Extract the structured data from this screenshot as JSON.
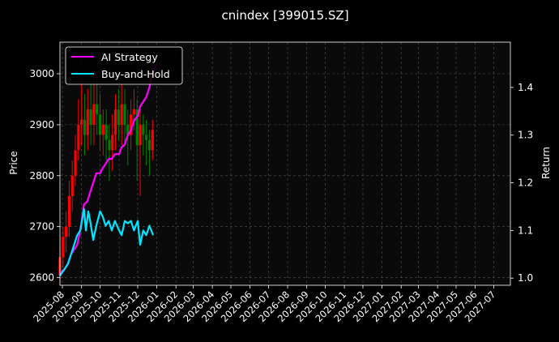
{
  "chart_data": {
    "type": "line",
    "title": "cnindex [399015.SZ]",
    "ylabel_left": "Price",
    "ylabel_right": "Return",
    "x_ticks": [
      "2025-08",
      "2025-09",
      "2025-10",
      "2025-11",
      "2025-12",
      "2026-01",
      "2026-02",
      "2026-03",
      "2026-04",
      "2026-05",
      "2026-06",
      "2026-07",
      "2026-08",
      "2026-09",
      "2026-10",
      "2026-11",
      "2026-12",
      "2027-01",
      "2027-02",
      "2027-03",
      "2027-04",
      "2027-05",
      "2027-06",
      "2027-07"
    ],
    "y_left_ticks": [
      "2600",
      "2700",
      "2800",
      "2900",
      "3000"
    ],
    "y_right_ticks": [
      "1.0",
      "1.1",
      "1.2",
      "1.3",
      "1.4"
    ],
    "y_left_range": [
      2585,
      3062
    ],
    "y_right_range": [
      0.985,
      1.495
    ],
    "x_range": [
      "2025-07-28",
      "2027-07-28"
    ],
    "grid": true,
    "legend_position": "top-left",
    "colors": {
      "up": "#ff0000",
      "down": "#008000",
      "ai": "#ff00ff",
      "bh": "#00e5ff",
      "background": "#0a0a0a"
    },
    "series": [
      {
        "name": "AI Strategy",
        "axis": "right",
        "x": [
          "2025-07-28",
          "2025-08-05",
          "2025-08-10",
          "2025-08-15",
          "2025-08-20",
          "2025-08-25",
          "2025-08-30",
          "2025-09-05",
          "2025-09-10",
          "2025-09-15",
          "2025-09-20",
          "2025-09-25",
          "2025-10-01",
          "2025-10-05",
          "2025-10-10",
          "2025-10-15",
          "2025-10-20",
          "2025-10-25",
          "2025-11-01",
          "2025-11-05",
          "2025-11-10",
          "2025-11-15",
          "2025-11-20",
          "2025-11-25",
          "2025-12-01",
          "2025-12-05",
          "2025-12-10",
          "2025-12-15",
          "2025-12-20",
          "2025-12-25",
          "2026-01-01"
        ],
        "values": [
          1.01,
          1.02,
          1.03,
          1.05,
          1.06,
          1.07,
          1.1,
          1.155,
          1.16,
          1.18,
          1.2,
          1.22,
          1.22,
          1.23,
          1.24,
          1.25,
          1.25,
          1.26,
          1.26,
          1.275,
          1.28,
          1.3,
          1.31,
          1.33,
          1.34,
          1.36,
          1.37,
          1.38,
          1.4,
          1.43,
          1.45
        ]
      },
      {
        "name": "Buy-and-Hold",
        "axis": "right",
        "x": [
          "2025-07-28",
          "2025-08-05",
          "2025-08-10",
          "2025-08-15",
          "2025-08-20",
          "2025-08-25",
          "2025-08-30",
          "2025-09-05",
          "2025-09-08",
          "2025-09-12",
          "2025-09-15",
          "2025-09-20",
          "2025-09-25",
          "2025-10-01",
          "2025-10-05",
          "2025-10-10",
          "2025-10-15",
          "2025-10-20",
          "2025-10-25",
          "2025-11-01",
          "2025-11-05",
          "2025-11-10",
          "2025-11-15",
          "2025-11-20",
          "2025-11-25",
          "2025-12-01",
          "2025-12-05",
          "2025-12-10",
          "2025-12-15",
          "2025-12-20",
          "2025-12-23",
          "2025-12-26"
        ],
        "values": [
          1.005,
          1.02,
          1.03,
          1.05,
          1.07,
          1.09,
          1.1,
          1.145,
          1.1,
          1.14,
          1.12,
          1.08,
          1.11,
          1.14,
          1.13,
          1.11,
          1.12,
          1.1,
          1.12,
          1.1,
          1.09,
          1.12,
          1.115,
          1.12,
          1.1,
          1.12,
          1.07,
          1.1,
          1.09,
          1.11,
          1.1,
          1.09
        ]
      }
    ],
    "candles": {
      "axis": "left",
      "x": [
        "2025-07-28",
        "2025-08-02",
        "2025-08-07",
        "2025-08-12",
        "2025-08-17",
        "2025-08-22",
        "2025-08-27",
        "2025-09-01",
        "2025-09-06",
        "2025-09-11",
        "2025-09-16",
        "2025-09-21",
        "2025-09-26",
        "2025-10-01",
        "2025-10-06",
        "2025-10-11",
        "2025-10-16",
        "2025-10-21",
        "2025-10-26",
        "2025-10-31",
        "2025-11-05",
        "2025-11-10",
        "2025-11-15",
        "2025-11-20",
        "2025-11-25",
        "2025-11-30",
        "2025-12-05",
        "2025-12-10",
        "2025-12-15",
        "2025-12-20",
        "2025-12-25"
      ],
      "open": [
        2605,
        2640,
        2680,
        2700,
        2760,
        2800,
        2850,
        2900,
        2910,
        2880,
        2930,
        2900,
        2940,
        2920,
        2880,
        2900,
        2870,
        2850,
        2880,
        2930,
        2900,
        2940,
        2900,
        2880,
        2920,
        2930,
        2860,
        2900,
        2880,
        2870,
        2850
      ],
      "close": [
        2640,
        2680,
        2700,
        2760,
        2800,
        2850,
        2900,
        2910,
        2880,
        2930,
        2900,
        2940,
        2920,
        2880,
        2900,
        2870,
        2850,
        2880,
        2930,
        2900,
        2940,
        2900,
        2880,
        2920,
        2930,
        2860,
        2900,
        2880,
        2870,
        2850,
        2890
      ],
      "high": [
        2660,
        2700,
        2730,
        2790,
        2830,
        2880,
        2950,
        2990,
        2960,
        2970,
        2980,
        2990,
        3000,
        2960,
        2930,
        2930,
        2900,
        2920,
        2960,
        2970,
        2980,
        2970,
        2930,
        2950,
        2970,
        2950,
        2930,
        2920,
        2910,
        2890,
        2910
      ],
      "low": [
        2590,
        2620,
        2650,
        2680,
        2730,
        2780,
        2830,
        2860,
        2840,
        2850,
        2860,
        2860,
        2880,
        2850,
        2840,
        2830,
        2790,
        2810,
        2850,
        2870,
        2860,
        2860,
        2820,
        2850,
        2890,
        2790,
        2760,
        2840,
        2820,
        2800,
        2830
      ]
    }
  }
}
